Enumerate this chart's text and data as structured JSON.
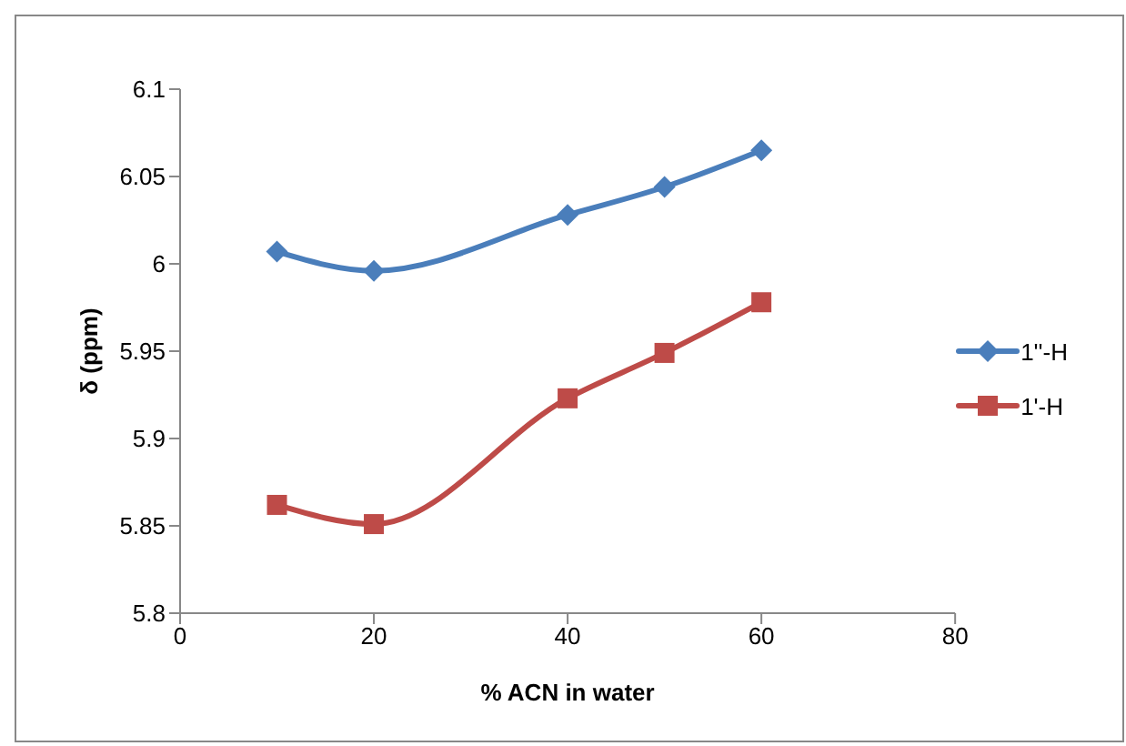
{
  "chart_data": {
    "type": "line",
    "xlabel": "% ACN in water",
    "ylabel": "δ (ppm)",
    "xlim": [
      0,
      80
    ],
    "xticks": [
      0,
      20,
      40,
      60,
      80
    ],
    "ylim": [
      5.8,
      6.1
    ],
    "yticks": [
      5.8,
      5.85,
      5.9,
      5.95,
      6,
      6.05,
      6.1
    ],
    "x": [
      10,
      20,
      40,
      50,
      60
    ],
    "series": [
      {
        "name": "1''-H",
        "color": "#4a7ebb",
        "marker": "diamond",
        "values": [
          6.007,
          5.996,
          6.028,
          6.044,
          6.065
        ]
      },
      {
        "name": "1'-H",
        "color": "#be4b48",
        "marker": "square",
        "values": [
          5.862,
          5.851,
          5.923,
          5.949,
          5.978
        ]
      }
    ],
    "grid": false,
    "legend": "right",
    "line_style": "solid"
  }
}
